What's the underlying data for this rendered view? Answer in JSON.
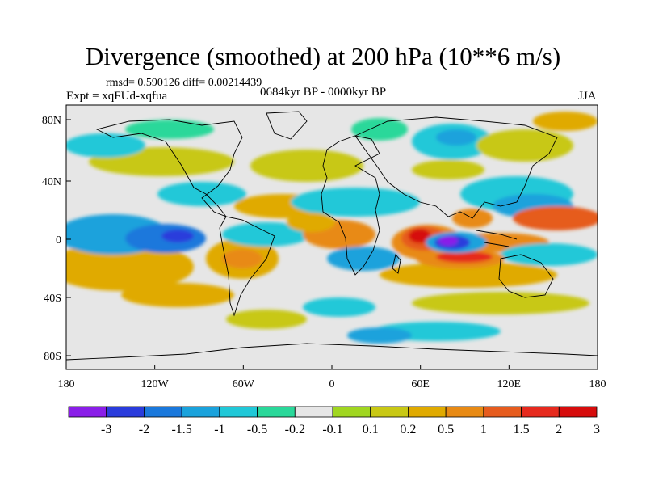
{
  "title": "Divergence (smoothed) at 200 hPa (10**6 m/s)",
  "rmsd_line": "rmsd= 0.590126 diff= 0.00214439",
  "expt_line": "Expt = xqFUd-xqfua",
  "period_line": "0684kyr BP - 0000kyr BP",
  "season": "JJA",
  "map": {
    "lon_ticks": [
      "180",
      "120W",
      "60W",
      "0",
      "60E",
      "120E",
      "180"
    ],
    "lat_ticks": [
      "80N",
      "40N",
      "0",
      "40S",
      "80S"
    ]
  },
  "colorbar": {
    "colors": [
      "#8a1ee8",
      "#2a3cdc",
      "#1a78dc",
      "#1aa2dc",
      "#20c8d8",
      "#2ad89a",
      "#e6e6e6",
      "#a0d620",
      "#c8c814",
      "#e0aa00",
      "#e88a14",
      "#e65c1e",
      "#e62a1e",
      "#d60c0c"
    ],
    "labels": [
      "-3",
      "-2",
      "-1.5",
      "-1",
      "-0.5",
      "-0.2",
      "-0.1",
      "0.1",
      "0.2",
      "0.5",
      "1",
      "1.5",
      "2",
      "3"
    ]
  },
  "field_colors": {
    "ocean_bg": "#e6e6e6",
    "strong_neg": "#8a1ee8",
    "neg2": "#2a3cdc",
    "neg15": "#1a78dc",
    "neg1": "#1aa2dc",
    "neg05": "#20c8d8",
    "neg02": "#2ad89a",
    "pos01": "#a0d620",
    "pos02": "#c8c814",
    "pos05": "#e0aa00",
    "pos1": "#e88a14",
    "pos15": "#e65c1e",
    "pos2": "#e62a1e",
    "pos3": "#d60c0c"
  }
}
